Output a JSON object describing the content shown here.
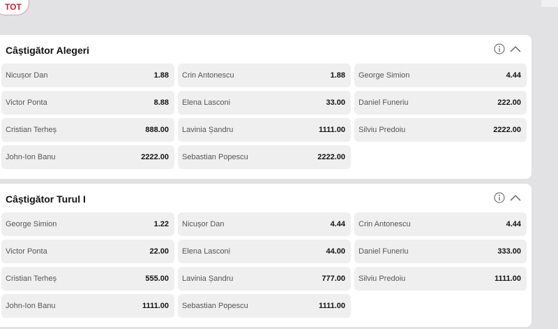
{
  "filter": {
    "tot_label": "TOT"
  },
  "markets": [
    {
      "title": "Câștigător Alegeri",
      "selections": [
        {
          "name": "Nicușor Dan",
          "odds": "1.88"
        },
        {
          "name": "Crin Antonescu",
          "odds": "1.88"
        },
        {
          "name": "George Simion",
          "odds": "4.44"
        },
        {
          "name": "Victor Ponta",
          "odds": "8.88"
        },
        {
          "name": "Elena Lasconi",
          "odds": "33.00"
        },
        {
          "name": "Daniel Funeriu",
          "odds": "222.00"
        },
        {
          "name": "Cristian Terheș",
          "odds": "888.00"
        },
        {
          "name": "Lavinia Șandru",
          "odds": "1111.00"
        },
        {
          "name": "Silviu Predoiu",
          "odds": "2222.00"
        },
        {
          "name": "John-Ion Banu",
          "odds": "2222.00"
        },
        {
          "name": "Sebastian Popescu",
          "odds": "2222.00"
        }
      ]
    },
    {
      "title": "Câștigător Turul I",
      "selections": [
        {
          "name": "George Simion",
          "odds": "1.22"
        },
        {
          "name": "Nicușor Dan",
          "odds": "4.44"
        },
        {
          "name": "Crin Antonescu",
          "odds": "4.44"
        },
        {
          "name": "Victor Ponta",
          "odds": "22.00"
        },
        {
          "name": "Elena Lasconi",
          "odds": "44.00"
        },
        {
          "name": "Daniel Funeriu",
          "odds": "333.00"
        },
        {
          "name": "Cristian Terheș",
          "odds": "555.00"
        },
        {
          "name": "Lavinia Șandru",
          "odds": "777.00"
        },
        {
          "name": "Silviu Predoiu",
          "odds": "1111.00"
        },
        {
          "name": "John-Ion Banu",
          "odds": "1111.00"
        },
        {
          "name": "Sebastian Popescu",
          "odds": "1111.00"
        }
      ]
    }
  ],
  "icons": {
    "info": "info-icon",
    "collapse": "chevron-up-icon"
  },
  "colors": {
    "accent": "#c8202f",
    "background": "#e2e2e4",
    "cell": "#efeff0"
  }
}
